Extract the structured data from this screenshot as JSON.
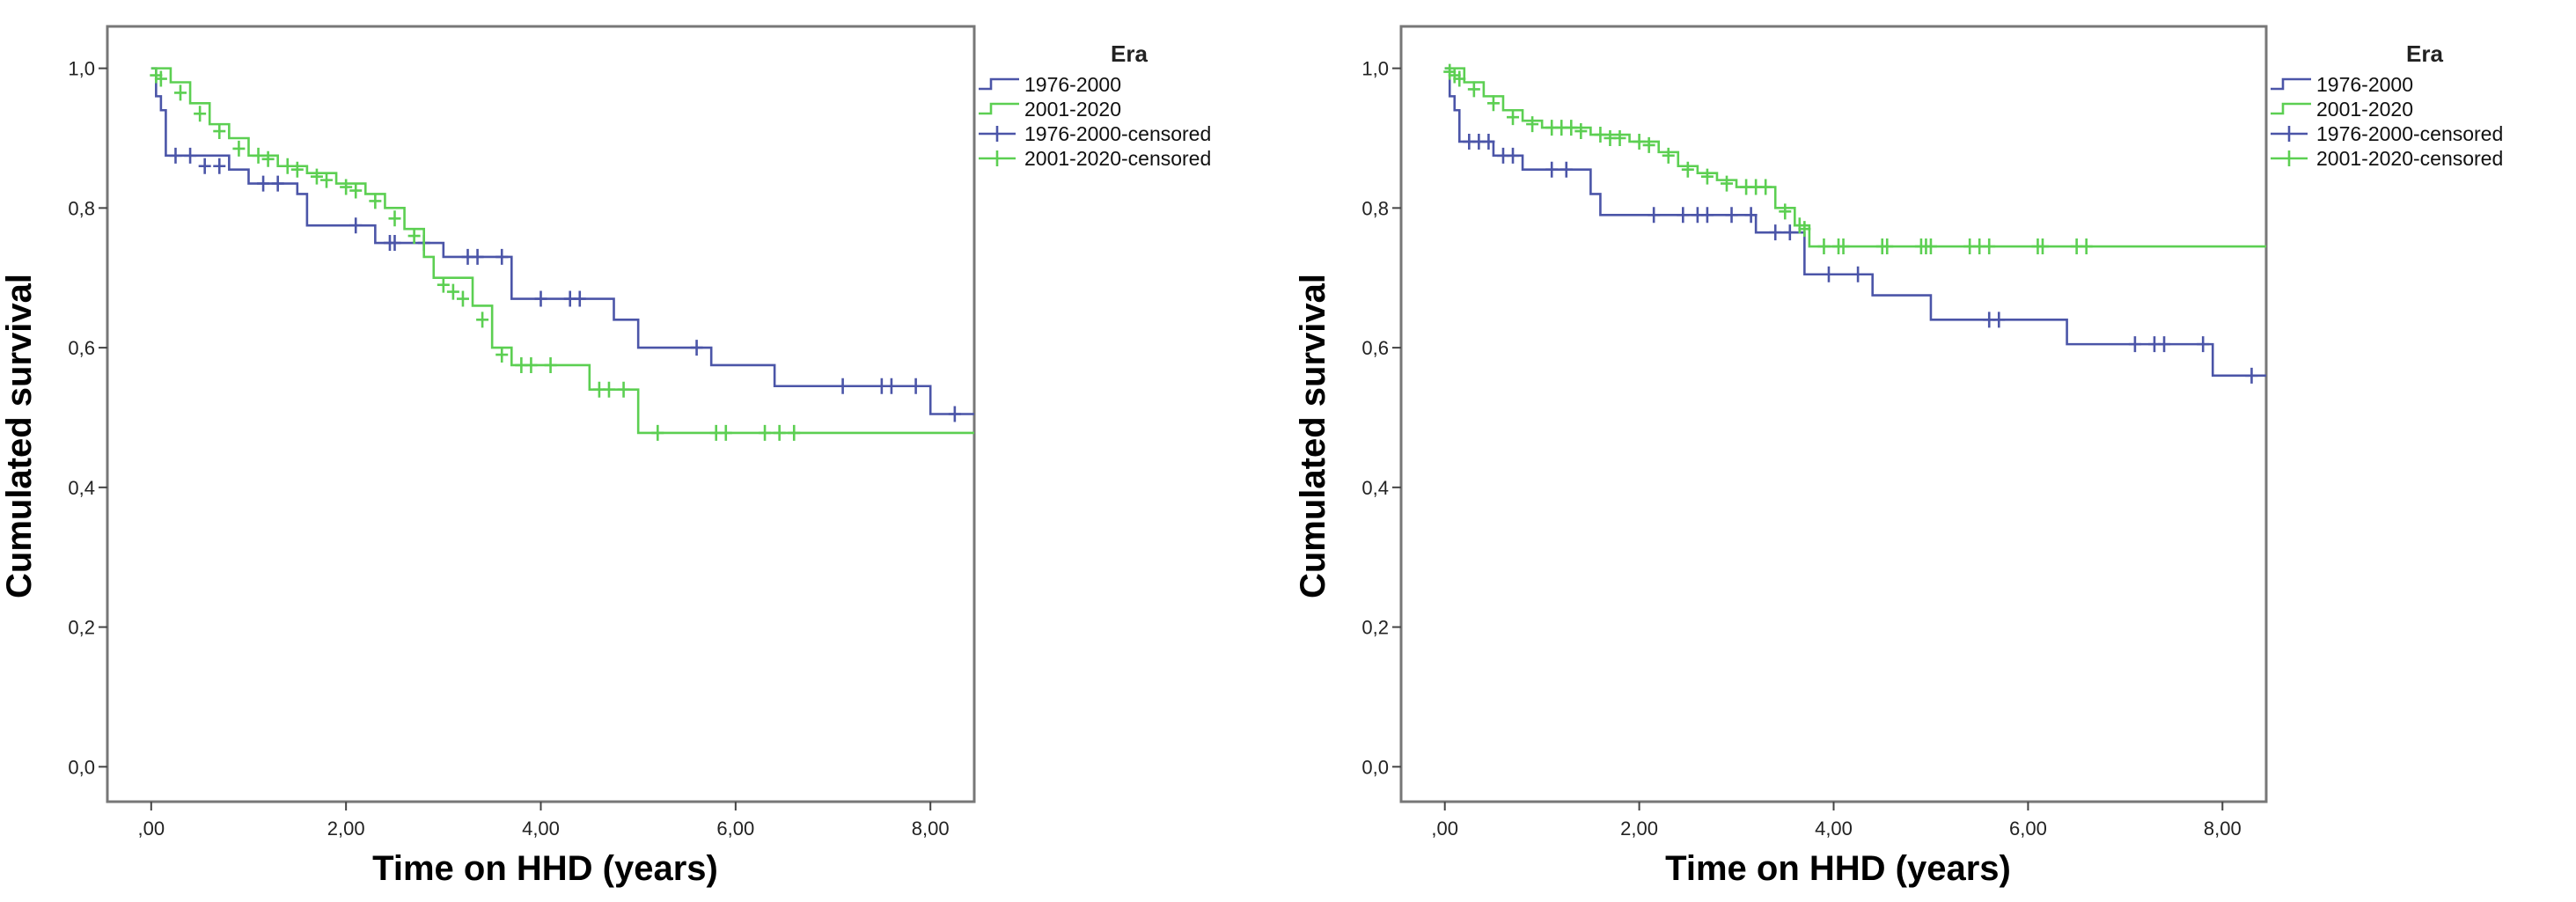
{
  "colors": {
    "series1": "#4b55a8",
    "series2": "#5ccf52",
    "frame": "#777777",
    "text": "#222222"
  },
  "chart_data": [
    {
      "type": "line",
      "xlabel": "Time on HHD (years)",
      "ylabel": "Cumulated survival",
      "xlim": [
        -0.45,
        8.45
      ],
      "ylim": [
        -0.05,
        1.06
      ],
      "xticks": [
        0,
        2,
        4,
        6,
        8
      ],
      "xtick_labels": [
        ",00",
        "2,00",
        "4,00",
        "6,00",
        "8,00"
      ],
      "yticks": [
        0,
        0.2,
        0.4,
        0.6,
        0.8,
        1.0
      ],
      "ytick_labels": [
        "0,0",
        "0,2",
        "0,4",
        "0,6",
        "0,8",
        "1,0"
      ],
      "grid": false,
      "legend_position": "outside-right-top",
      "legend": {
        "title": "Era",
        "entries": [
          "1976-2000",
          "2001-2020",
          "1976-2000-censored",
          "2001-2020-censored"
        ]
      },
      "series": [
        {
          "name": "1976-2000",
          "color": "#4b55a8",
          "steps": [
            [
              0,
              1.0
            ],
            [
              0.05,
              0.96
            ],
            [
              0.1,
              0.94
            ],
            [
              0.15,
              0.875
            ],
            [
              0.8,
              0.855
            ],
            [
              1.0,
              0.835
            ],
            [
              1.5,
              0.82
            ],
            [
              1.6,
              0.775
            ],
            [
              2.3,
              0.75
            ],
            [
              3.0,
              0.73
            ],
            [
              3.7,
              0.67
            ],
            [
              4.75,
              0.64
            ],
            [
              5.0,
              0.6
            ],
            [
              5.75,
              0.575
            ],
            [
              6.4,
              0.545
            ],
            [
              8.0,
              0.505
            ],
            [
              8.45,
              0.505
            ]
          ],
          "censored": [
            [
              0.25,
              0.875
            ],
            [
              0.4,
              0.875
            ],
            [
              0.55,
              0.86
            ],
            [
              0.7,
              0.86
            ],
            [
              1.15,
              0.835
            ],
            [
              1.3,
              0.835
            ],
            [
              2.1,
              0.775
            ],
            [
              2.45,
              0.75
            ],
            [
              2.5,
              0.75
            ],
            [
              2.8,
              0.75
            ],
            [
              3.25,
              0.73
            ],
            [
              3.35,
              0.73
            ],
            [
              3.6,
              0.73
            ],
            [
              4.0,
              0.67
            ],
            [
              4.3,
              0.67
            ],
            [
              4.4,
              0.67
            ],
            [
              5.6,
              0.6
            ],
            [
              7.1,
              0.545
            ],
            [
              7.5,
              0.545
            ],
            [
              7.6,
              0.545
            ],
            [
              7.85,
              0.545
            ],
            [
              8.25,
              0.505
            ]
          ]
        },
        {
          "name": "2001-2020",
          "color": "#5ccf52",
          "steps": [
            [
              0,
              1.0
            ],
            [
              0.2,
              0.98
            ],
            [
              0.4,
              0.95
            ],
            [
              0.6,
              0.92
            ],
            [
              0.8,
              0.9
            ],
            [
              1.0,
              0.875
            ],
            [
              1.3,
              0.86
            ],
            [
              1.6,
              0.85
            ],
            [
              1.9,
              0.835
            ],
            [
              2.2,
              0.82
            ],
            [
              2.4,
              0.8
            ],
            [
              2.6,
              0.77
            ],
            [
              2.8,
              0.73
            ],
            [
              2.9,
              0.7
            ],
            [
              3.3,
              0.66
            ],
            [
              3.5,
              0.6
            ],
            [
              3.7,
              0.575
            ],
            [
              4.0,
              0.575
            ],
            [
              4.5,
              0.54
            ],
            [
              5.0,
              0.478
            ],
            [
              8.45,
              0.478
            ]
          ],
          "censored": [
            [
              0.05,
              0.99
            ],
            [
              0.1,
              0.985
            ],
            [
              0.3,
              0.965
            ],
            [
              0.5,
              0.935
            ],
            [
              0.7,
              0.91
            ],
            [
              0.9,
              0.885
            ],
            [
              1.1,
              0.875
            ],
            [
              1.2,
              0.87
            ],
            [
              1.4,
              0.86
            ],
            [
              1.5,
              0.855
            ],
            [
              1.7,
              0.845
            ],
            [
              1.8,
              0.84
            ],
            [
              2.0,
              0.83
            ],
            [
              2.1,
              0.825
            ],
            [
              2.3,
              0.81
            ],
            [
              2.5,
              0.785
            ],
            [
              2.7,
              0.76
            ],
            [
              3.0,
              0.69
            ],
            [
              3.1,
              0.68
            ],
            [
              3.2,
              0.67
            ],
            [
              3.4,
              0.64
            ],
            [
              3.6,
              0.59
            ],
            [
              3.8,
              0.575
            ],
            [
              3.9,
              0.575
            ],
            [
              4.1,
              0.575
            ],
            [
              4.6,
              0.54
            ],
            [
              4.7,
              0.54
            ],
            [
              4.85,
              0.54
            ],
            [
              5.2,
              0.478
            ],
            [
              5.8,
              0.478
            ],
            [
              5.9,
              0.478
            ],
            [
              6.3,
              0.478
            ],
            [
              6.45,
              0.478
            ],
            [
              6.6,
              0.478
            ]
          ]
        }
      ]
    },
    {
      "type": "line",
      "xlabel": "Time on HHD (years)",
      "ylabel": "Cumulated survival",
      "xlim": [
        -0.45,
        8.45
      ],
      "ylim": [
        -0.05,
        1.06
      ],
      "xticks": [
        0,
        2,
        4,
        6,
        8
      ],
      "xtick_labels": [
        ",00",
        "2,00",
        "4,00",
        "6,00",
        "8,00"
      ],
      "yticks": [
        0,
        0.2,
        0.4,
        0.6,
        0.8,
        1.0
      ],
      "ytick_labels": [
        "0,0",
        "0,2",
        "0,4",
        "0,6",
        "0,8",
        "1,0"
      ],
      "grid": false,
      "legend_position": "outside-right-top",
      "legend": {
        "title": "Era",
        "entries": [
          "1976-2000",
          "2001-2020",
          "1976-2000-censored",
          "2001-2020-censored"
        ]
      },
      "series": [
        {
          "name": "1976-2000",
          "color": "#4b55a8",
          "steps": [
            [
              0,
              1.0
            ],
            [
              0.05,
              0.96
            ],
            [
              0.1,
              0.94
            ],
            [
              0.15,
              0.895
            ],
            [
              0.5,
              0.875
            ],
            [
              0.8,
              0.855
            ],
            [
              1.5,
              0.82
            ],
            [
              1.6,
              0.79
            ],
            [
              3.2,
              0.765
            ],
            [
              3.7,
              0.705
            ],
            [
              4.4,
              0.675
            ],
            [
              5.0,
              0.64
            ],
            [
              6.4,
              0.605
            ],
            [
              7.9,
              0.56
            ],
            [
              8.45,
              0.56
            ]
          ],
          "censored": [
            [
              0.25,
              0.895
            ],
            [
              0.35,
              0.895
            ],
            [
              0.45,
              0.895
            ],
            [
              0.6,
              0.875
            ],
            [
              0.7,
              0.875
            ],
            [
              1.1,
              0.855
            ],
            [
              1.25,
              0.855
            ],
            [
              2.15,
              0.79
            ],
            [
              2.45,
              0.79
            ],
            [
              2.6,
              0.79
            ],
            [
              2.7,
              0.79
            ],
            [
              2.95,
              0.79
            ],
            [
              3.15,
              0.79
            ],
            [
              3.4,
              0.765
            ],
            [
              3.55,
              0.765
            ],
            [
              3.95,
              0.705
            ],
            [
              4.25,
              0.705
            ],
            [
              5.6,
              0.64
            ],
            [
              5.7,
              0.64
            ],
            [
              7.1,
              0.605
            ],
            [
              7.3,
              0.605
            ],
            [
              7.4,
              0.605
            ],
            [
              7.8,
              0.605
            ],
            [
              8.3,
              0.56
            ]
          ]
        },
        {
          "name": "2001-2020",
          "color": "#5ccf52",
          "steps": [
            [
              0,
              1.0
            ],
            [
              0.2,
              0.98
            ],
            [
              0.4,
              0.96
            ],
            [
              0.6,
              0.94
            ],
            [
              0.8,
              0.925
            ],
            [
              1.0,
              0.915
            ],
            [
              1.5,
              0.905
            ],
            [
              1.9,
              0.895
            ],
            [
              2.2,
              0.88
            ],
            [
              2.4,
              0.86
            ],
            [
              2.6,
              0.85
            ],
            [
              2.8,
              0.84
            ],
            [
              3.0,
              0.83
            ],
            [
              3.4,
              0.8
            ],
            [
              3.6,
              0.775
            ],
            [
              3.75,
              0.745
            ],
            [
              8.45,
              0.745
            ]
          ],
          "censored": [
            [
              0.05,
              0.995
            ],
            [
              0.1,
              0.99
            ],
            [
              0.15,
              0.985
            ],
            [
              0.3,
              0.97
            ],
            [
              0.5,
              0.95
            ],
            [
              0.7,
              0.93
            ],
            [
              0.9,
              0.92
            ],
            [
              1.1,
              0.915
            ],
            [
              1.2,
              0.915
            ],
            [
              1.3,
              0.915
            ],
            [
              1.4,
              0.91
            ],
            [
              1.6,
              0.905
            ],
            [
              1.7,
              0.9
            ],
            [
              1.8,
              0.9
            ],
            [
              2.0,
              0.895
            ],
            [
              2.1,
              0.89
            ],
            [
              2.3,
              0.875
            ],
            [
              2.5,
              0.855
            ],
            [
              2.7,
              0.845
            ],
            [
              2.9,
              0.835
            ],
            [
              3.1,
              0.83
            ],
            [
              3.2,
              0.83
            ],
            [
              3.3,
              0.83
            ],
            [
              3.5,
              0.795
            ],
            [
              3.65,
              0.775
            ],
            [
              3.7,
              0.77
            ],
            [
              3.9,
              0.745
            ],
            [
              4.05,
              0.745
            ],
            [
              4.1,
              0.745
            ],
            [
              4.5,
              0.745
            ],
            [
              4.55,
              0.745
            ],
            [
              4.9,
              0.745
            ],
            [
              4.95,
              0.745
            ],
            [
              5.0,
              0.745
            ],
            [
              5.4,
              0.745
            ],
            [
              5.5,
              0.745
            ],
            [
              5.6,
              0.745
            ],
            [
              6.1,
              0.745
            ],
            [
              6.15,
              0.745
            ],
            [
              6.5,
              0.745
            ],
            [
              6.6,
              0.745
            ]
          ]
        }
      ]
    }
  ]
}
